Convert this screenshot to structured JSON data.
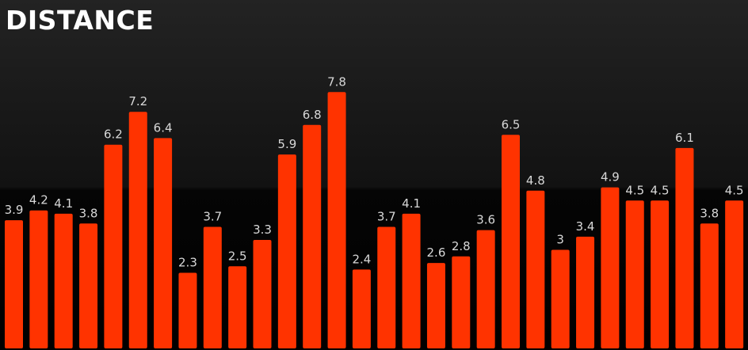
{
  "chart_data": {
    "type": "bar",
    "title": "DISTANCE",
    "xlabel": "",
    "ylabel": "",
    "values": [
      3.9,
      4.2,
      4.1,
      3.8,
      6.2,
      7.2,
      6.4,
      2.3,
      3.7,
      2.5,
      3.3,
      5.9,
      6.8,
      7.8,
      2.4,
      3.7,
      4.1,
      2.6,
      2.8,
      3.6,
      6.5,
      4.8,
      3,
      3.4,
      4.9,
      4.5,
      4.5,
      6.1,
      3.8,
      4.5
    ],
    "value_labels": [
      "3.9",
      "4.2",
      "4.1",
      "3.8",
      "6.2",
      "7.2",
      "6.4",
      "2.3",
      "3.7",
      "2.5",
      "3.3",
      "5.9",
      "6.8",
      "7.8",
      "2.4",
      "3.7",
      "4.1",
      "2.6",
      "2.8",
      "3.6",
      "6.5",
      "4.8",
      "3",
      "3.4",
      "4.9",
      "4.5",
      "4.5",
      "6.1",
      "3.8",
      "4.5"
    ],
    "ylim": [
      0,
      8
    ],
    "grid": false,
    "legend": "none",
    "bar_color": "#ff3300",
    "label_color": "#d8d8d8",
    "title_color": "#ffffff",
    "background_color": "#000000"
  }
}
